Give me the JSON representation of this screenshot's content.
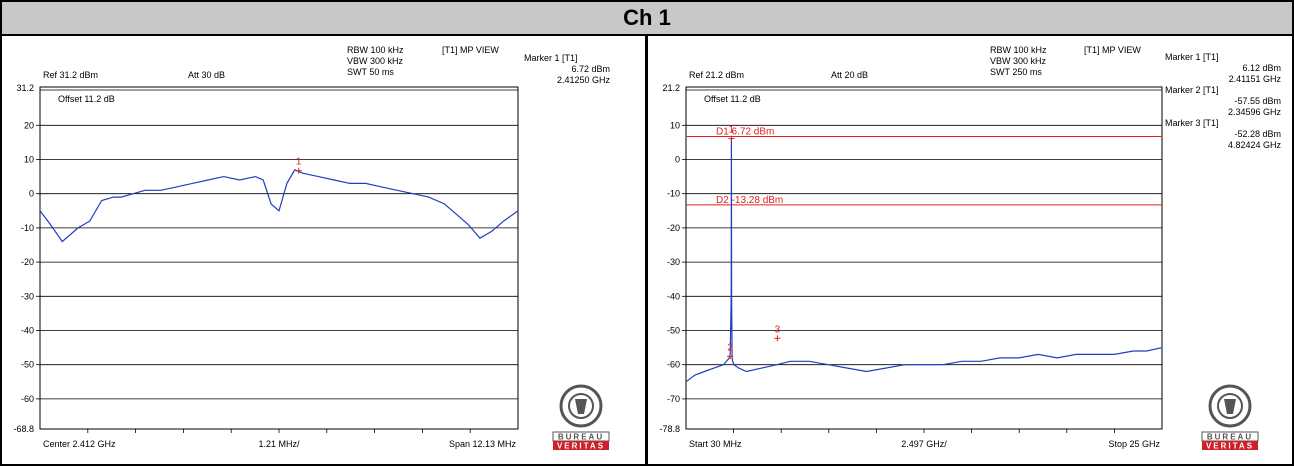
{
  "page_title": "Ch 1",
  "colors": {
    "trace": "#1f3fbf",
    "marker": "#e02020",
    "display_line": "#e02020",
    "grid": "#000000",
    "title_bg": "#c8c8c8",
    "logo_red": "#d0202a",
    "logo_gray": "#555555"
  },
  "logo": {
    "line1": "BUREAU",
    "line2": "VERITAS"
  },
  "chart_data": [
    {
      "type": "line",
      "settings": {
        "rbw": "RBW 100 kHz",
        "vbw": "VBW 300 kHz",
        "swt": "SWT 50 ms",
        "view": "[T1] MP VIEW",
        "ref": "Ref 31.2 dBm",
        "att": "Att 30 dB",
        "offset": "Offset 11.2 dB"
      },
      "markers_info": [
        {
          "name": "Marker 1 [T1]",
          "level": "6.72 dBm",
          "freq": "2.41250 GHz"
        }
      ],
      "ylim": [
        -68.8,
        31.2
      ],
      "y_ticks": [
        20,
        10,
        0,
        -10,
        -20,
        -30,
        -40,
        -50,
        -60
      ],
      "y_tick_labels": [
        "20",
        "10",
        "0",
        "-10",
        "-20",
        "-30",
        "-40",
        "-50",
        "-60"
      ],
      "y_top_label": "31.2",
      "y_bottom_label": "-68.8",
      "xlim": [
        2405.935,
        2418.065
      ],
      "x_unit": "MHz",
      "x_footer": {
        "left": "Center 2.412 GHz",
        "mid": "1.21 MHz/",
        "right": "Span 12.13 MHz"
      },
      "x": [
        2405.935,
        2406.2,
        2406.5,
        2406.9,
        2407.2,
        2407.5,
        2407.8,
        2408.0,
        2408.3,
        2408.6,
        2409.0,
        2409.4,
        2409.8,
        2410.2,
        2410.6,
        2411.0,
        2411.4,
        2411.6,
        2411.8,
        2412.0,
        2412.2,
        2412.4,
        2412.6,
        2413.0,
        2413.4,
        2413.8,
        2414.2,
        2414.6,
        2415.0,
        2415.4,
        2415.8,
        2416.2,
        2416.5,
        2416.8,
        2417.1,
        2417.4,
        2417.7,
        2418.065
      ],
      "y": [
        -5,
        -9,
        -14,
        -10,
        -8,
        -2,
        -1,
        -1,
        0,
        1,
        1,
        2,
        3,
        4,
        5,
        4,
        5,
        4,
        -3,
        -5,
        3,
        7,
        6,
        5,
        4,
        3,
        3,
        2,
        1,
        0,
        -1,
        -3,
        -6,
        -9,
        -13,
        -11,
        -8,
        -5
      ],
      "markers": [
        {
          "label": "1",
          "x": 2412.5,
          "y": 6.72
        }
      ],
      "display_lines": []
    },
    {
      "type": "line",
      "settings": {
        "rbw": "RBW 100 kHz",
        "vbw": "VBW 300 kHz",
        "swt": "SWT 250 ms",
        "view": "[T1] MP VIEW",
        "ref": "Ref 21.2 dBm",
        "att": "Att  20 dB",
        "offset": "Offset 11.2 dB"
      },
      "markers_info": [
        {
          "name": "Marker 1 [T1]",
          "level": "6.12 dBm",
          "freq": "2.41151 GHz"
        },
        {
          "name": "Marker 2 [T1]",
          "level": "-57.55 dBm",
          "freq": "2.34596 GHz"
        },
        {
          "name": "Marker 3 [T1]",
          "level": "-52.28 dBm",
          "freq": "4.82424 GHz"
        }
      ],
      "ylim": [
        -78.8,
        21.2
      ],
      "y_ticks": [
        10,
        0,
        -10,
        -20,
        -30,
        -40,
        -50,
        -60,
        -70
      ],
      "y_tick_labels": [
        "10",
        "0",
        "-10",
        "-20",
        "-30",
        "-40",
        "-50",
        "-60",
        "-70"
      ],
      "y_top_label": "21.2",
      "y_bottom_label": "-78.8",
      "xlim": [
        0.03,
        25
      ],
      "x_unit": "GHz",
      "x_footer": {
        "left": "Start 30 MHz",
        "mid": "2.497 GHz/",
        "right": "Stop 25 GHz"
      },
      "x": [
        0.03,
        0.5,
        1.0,
        1.5,
        2.0,
        2.3,
        2.35,
        2.4,
        2.41,
        2.42,
        2.45,
        2.48,
        2.55,
        2.8,
        3.2,
        4.0,
        4.8,
        5.5,
        6.5,
        7.5,
        8.5,
        9.5,
        10.5,
        11.5,
        12.5,
        13.5,
        14.5,
        15.5,
        16.5,
        17.5,
        18.5,
        19.5,
        20.5,
        21.5,
        22.5,
        23.5,
        24.2,
        25.0
      ],
      "y": [
        -65,
        -63,
        -62,
        -61,
        -60,
        -58,
        -57,
        -40,
        6.12,
        -40,
        -58,
        -59,
        -60,
        -61,
        -62,
        -61,
        -60,
        -59,
        -59,
        -60,
        -61,
        -62,
        -61,
        -60,
        -60,
        -60,
        -59,
        -59,
        -58,
        -58,
        -57,
        -58,
        -57,
        -57,
        -57,
        -56,
        -56,
        -55
      ],
      "markers": [
        {
          "label": "1",
          "x": 2.41151,
          "y": 6.12
        },
        {
          "label": "2",
          "x": 2.34596,
          "y": -57.55
        },
        {
          "label": "3",
          "x": 4.82424,
          "y": -52.28
        }
      ],
      "display_lines": [
        {
          "label": "D1 6.72 dBm",
          "y": 6.72
        },
        {
          "label": "D2 -13.28 dBm",
          "y": -13.28
        }
      ]
    }
  ]
}
